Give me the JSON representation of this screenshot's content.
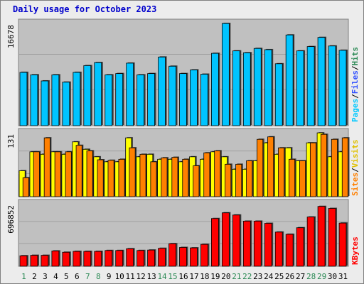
{
  "title": "Daily usage for October 2023",
  "colors": {
    "pages": "#00c4ff",
    "files": "#00c4ff",
    "hits": "#2e8b57",
    "sites": "#ff8000",
    "visits": "#ffff00",
    "kbytes": "#ff0000",
    "legend_pages": "#00c8ff",
    "legend_files": "#3050ff",
    "legend_hits": "#2e8b57",
    "legend_sites": "#ff8000",
    "legend_visits": "#e0c000",
    "legend_kbytes": "#ff0000",
    "weekend_day": "#2e8b57",
    "weekday_day": "#000000"
  },
  "chart_data": [
    {
      "type": "bar",
      "title": "Daily usage for October 2023",
      "categories": [
        "1",
        "2",
        "3",
        "4",
        "5",
        "6",
        "7",
        "8",
        "9",
        "10",
        "11",
        "12",
        "13",
        "14",
        "15",
        "16",
        "17",
        "18",
        "19",
        "20",
        "21",
        "22",
        "23",
        "24",
        "25",
        "26",
        "27",
        "28",
        "29",
        "30",
        "31"
      ],
      "weekend_days": [
        1,
        7,
        8,
        14,
        15,
        21,
        22,
        28,
        29
      ],
      "ymax_label": "16678",
      "ylim": [
        0,
        16678
      ],
      "legend": [
        "Pages",
        "/",
        "Files",
        "/",
        "Hits"
      ],
      "legend_position": "right",
      "series": [
        {
          "name": "Hits",
          "values": [
            8700,
            8300,
            7300,
            8300,
            7100,
            8700,
            9800,
            10300,
            8300,
            8500,
            10200,
            8300,
            8500,
            11200,
            9700,
            8500,
            9100,
            8400,
            11800,
            16678,
            12200,
            11900,
            12600,
            12400,
            10100,
            14800,
            12200,
            12900,
            14400,
            13000,
            12300
          ]
        }
      ]
    },
    {
      "type": "bar",
      "ymax_label": "131",
      "ylim": [
        0,
        131
      ],
      "legend": [
        "Sites",
        "/",
        "Visits"
      ],
      "legend_position": "right",
      "series": [
        {
          "name": "Visits",
          "values": [
            52,
            90,
            85,
            90,
            85,
            110,
            95,
            80,
            70,
            70,
            118,
            80,
            85,
            75,
            75,
            70,
            80,
            75,
            90,
            80,
            55,
            55,
            72,
            108,
            85,
            98,
            72,
            108,
            128,
            80,
            90
          ]
        },
        {
          "name": "Sites",
          "values": [
            38,
            90,
            118,
            90,
            90,
            103,
            92,
            74,
            73,
            75,
            98,
            85,
            70,
            78,
            79,
            75,
            62,
            88,
            92,
            65,
            65,
            72,
            115,
            120,
            98,
            75,
            72,
            108,
            125,
            115,
            118
          ]
        }
      ]
    },
    {
      "type": "bar",
      "ymax_label": "696852",
      "ylim": [
        0,
        696852
      ],
      "legend": [
        "KBytes"
      ],
      "legend_position": "right",
      "series": [
        {
          "name": "KBytes",
          "values": [
            120000,
            125000,
            125000,
            175000,
            160000,
            170000,
            170000,
            170000,
            180000,
            180000,
            200000,
            180000,
            185000,
            205000,
            258000,
            215000,
            210000,
            250000,
            545000,
            610000,
            585000,
            515000,
            515000,
            490000,
            390000,
            365000,
            440000,
            562000,
            683000,
            660000,
            493000
          ]
        }
      ]
    }
  ]
}
